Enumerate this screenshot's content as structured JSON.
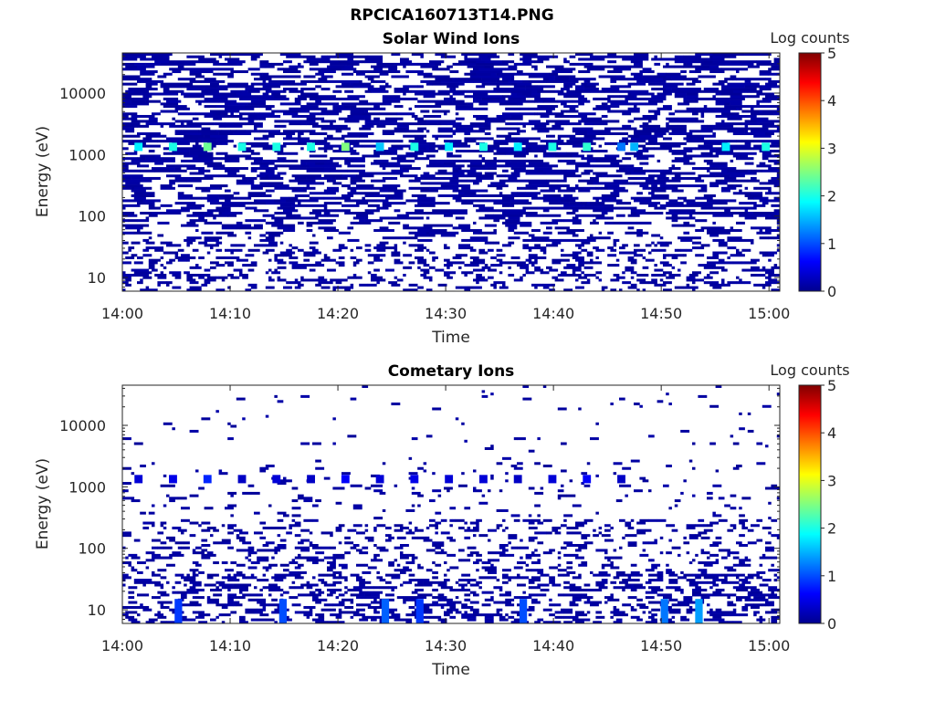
{
  "title": "RPCICA160713T14.PNG",
  "colormap": [
    "#00008f",
    "#0000ff",
    "#0080ff",
    "#00ffff",
    "#80ff80",
    "#ffff00",
    "#ff8000",
    "#ff0000",
    "#800000"
  ],
  "chart_data": [
    {
      "type": "heatmap",
      "title": "Solar Wind Ions",
      "xlabel": "Time",
      "ylabel": "Energy (eV)",
      "xticks": [
        "14:00",
        "14:10",
        "14:20",
        "14:30",
        "14:40",
        "14:50",
        "15:00"
      ],
      "xlim_minutes": [
        0,
        61
      ],
      "yscale": "log",
      "ylim": [
        6,
        45000
      ],
      "yticks": [
        {
          "v": 10,
          "label": "10"
        },
        {
          "v": 100,
          "label": "100"
        },
        {
          "v": 1000,
          "label": "1000"
        },
        {
          "v": 10000,
          "label": "10000"
        }
      ],
      "colorbar": {
        "label": "Log counts",
        "range": [
          0,
          5
        ],
        "ticks": [
          "0",
          "1",
          "2",
          "3",
          "4",
          "5"
        ]
      },
      "density": {
        "high_energy": 0.55,
        "low_energy": 0.35,
        "boundary_ev": 100
      },
      "hot_band": {
        "energy_ev": 1300,
        "times_minutes": [
          1.5,
          4.7,
          7.9,
          11.1,
          14.3,
          17.5,
          20.7,
          23.9,
          27.1,
          30.3,
          33.5,
          36.7,
          39.9,
          43.1,
          46.3,
          47.5,
          56.0,
          59.7
        ],
        "levels": [
          1.8,
          2.0,
          2.4,
          2.0,
          2.0,
          2.0,
          2.5,
          1.6,
          2.0,
          1.8,
          2.0,
          1.8,
          2.0,
          2.1,
          1.2,
          1.5,
          1.8,
          2.0
        ]
      }
    },
    {
      "type": "heatmap",
      "title": "Cometary Ions",
      "xlabel": "Time",
      "ylabel": "Energy (eV)",
      "xticks": [
        "14:00",
        "14:10",
        "14:20",
        "14:30",
        "14:40",
        "14:50",
        "15:00"
      ],
      "xlim_minutes": [
        0,
        61
      ],
      "yscale": "log",
      "ylim": [
        6,
        45000
      ],
      "yticks": [
        {
          "v": 10,
          "label": "10"
        },
        {
          "v": 100,
          "label": "100"
        },
        {
          "v": 1000,
          "label": "1000"
        },
        {
          "v": 10000,
          "label": "10000"
        }
      ],
      "colorbar": {
        "label": "Log counts",
        "range": [
          0,
          5
        ],
        "ticks": [
          "0",
          "1",
          "2",
          "3",
          "4",
          "5"
        ]
      },
      "density": {
        "high_energy": 0.03,
        "mid_energy": 0.12,
        "low_energy": 0.4,
        "boundary_ev": 300
      },
      "hot_band": {
        "energy_ev": 1300,
        "times_minutes": [
          1.5,
          4.7,
          7.9,
          11.1,
          14.3,
          17.5,
          20.7,
          23.9,
          27.1,
          30.3,
          33.5,
          36.7,
          39.9,
          43.1,
          46.3
        ],
        "levels": [
          0.4,
          0.5,
          0.8,
          0.3,
          0.4,
          0.3,
          0.6,
          0.4,
          0.5,
          0.4,
          0.4,
          0.3,
          0.4,
          0.6,
          0.3
        ]
      },
      "low_hot": {
        "energy_ev": 10,
        "times_minutes": [
          5.2,
          14.9,
          24.4,
          27.6,
          37.2,
          50.3,
          53.5
        ],
        "levels": [
          0.9,
          1.0,
          1.1,
          0.9,
          1.0,
          1.2,
          1.4
        ]
      }
    }
  ]
}
